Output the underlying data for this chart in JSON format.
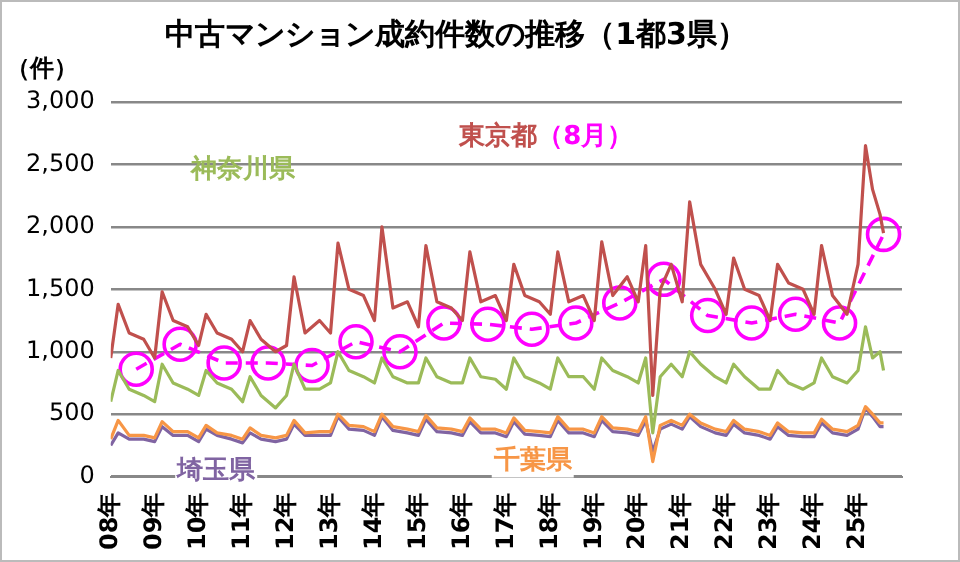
{
  "chart_data": {
    "type": "line",
    "title": "中古マンション成約件数の推移（1都3県）",
    "ylabel": "（件）",
    "xlim": [
      8,
      26
    ],
    "xticks": [
      {
        "value": 8,
        "label": "08年"
      },
      {
        "value": 9,
        "label": "09年"
      },
      {
        "value": 10,
        "label": "10年"
      },
      {
        "value": 11,
        "label": "11年"
      },
      {
        "value": 12,
        "label": "12年"
      },
      {
        "value": 13,
        "label": "13年"
      },
      {
        "value": 14,
        "label": "14年"
      },
      {
        "value": 15,
        "label": "15年"
      },
      {
        "value": 16,
        "label": "16年"
      },
      {
        "value": 17,
        "label": "17年"
      },
      {
        "value": 18,
        "label": "18年"
      },
      {
        "value": 19,
        "label": "19年"
      },
      {
        "value": 20,
        "label": "20年"
      },
      {
        "value": 21,
        "label": "21年"
      },
      {
        "value": 22,
        "label": "22年"
      },
      {
        "value": 23,
        "label": "23年"
      },
      {
        "value": 24,
        "label": "24年"
      },
      {
        "value": 25,
        "label": "25年"
      }
    ],
    "ylim": [
      0,
      3000
    ],
    "yticks": [
      0,
      500,
      {
        "value": 1000,
        "label": "1,000"
      },
      {
        "value": 1500,
        "label": "1,500"
      },
      {
        "value": 2000,
        "label": "2,000"
      },
      {
        "value": 2500,
        "label": "2,500"
      },
      {
        "value": 3000,
        "label": "3,000"
      }
    ],
    "grid": "y",
    "legend": false,
    "marker": "none",
    "line_style": "solid",
    "series": [
      {
        "name": "千葉県",
        "color": "#f79646",
        "x": [
          8,
          8.17,
          8.42,
          8.75,
          9,
          9.17,
          9.42,
          9.75,
          10,
          10.17,
          10.42,
          10.75,
          11,
          11.17,
          11.42,
          11.75,
          12,
          12.17,
          12.42,
          12.75,
          13,
          13.17,
          13.42,
          13.75,
          14,
          14.17,
          14.42,
          14.75,
          15,
          15.17,
          15.42,
          15.75,
          16,
          16.17,
          16.42,
          16.75,
          17,
          17.17,
          17.42,
          17.75,
          18,
          18.17,
          18.42,
          18.75,
          19,
          19.17,
          19.42,
          19.75,
          20,
          20.17,
          20.33,
          20.5,
          20.75,
          21,
          21.17,
          21.42,
          21.75,
          22,
          22.17,
          22.42,
          22.75,
          23,
          23.17,
          23.42,
          23.75,
          24,
          24.17,
          24.42,
          24.75,
          25,
          25.17,
          25.33,
          25.5,
          25.58
        ],
        "values": [
          300,
          450,
          330,
          330,
          310,
          440,
          360,
          360,
          310,
          410,
          350,
          330,
          300,
          390,
          330,
          310,
          330,
          450,
          350,
          360,
          360,
          500,
          410,
          400,
          360,
          500,
          400,
          380,
          360,
          490,
          390,
          380,
          360,
          470,
          380,
          380,
          350,
          470,
          370,
          360,
          350,
          480,
          380,
          380,
          350,
          480,
          390,
          380,
          360,
          480,
          120,
          410,
          450,
          410,
          500,
          430,
          380,
          360,
          450,
          380,
          360,
          330,
          430,
          360,
          350,
          350,
          460,
          380,
          360,
          410,
          560,
          500,
          430,
          430
        ]
      },
      {
        "name": "埼玉県",
        "color": "#8064a2",
        "x": [
          8,
          8.17,
          8.42,
          8.75,
          9,
          9.17,
          9.42,
          9.75,
          10,
          10.17,
          10.42,
          10.75,
          11,
          11.17,
          11.42,
          11.75,
          12,
          12.17,
          12.42,
          12.75,
          13,
          13.17,
          13.42,
          13.75,
          14,
          14.17,
          14.42,
          14.75,
          15,
          15.17,
          15.42,
          15.75,
          16,
          16.17,
          16.42,
          16.75,
          17,
          17.17,
          17.42,
          17.75,
          18,
          18.17,
          18.42,
          18.75,
          19,
          19.17,
          19.42,
          19.75,
          20,
          20.17,
          20.33,
          20.5,
          20.75,
          21,
          21.17,
          21.42,
          21.75,
          22,
          22.17,
          22.42,
          22.75,
          23,
          23.17,
          23.42,
          23.75,
          24,
          24.17,
          24.42,
          24.75,
          25,
          25.17,
          25.33,
          25.5,
          25.58
        ],
        "values": [
          250,
          350,
          300,
          300,
          280,
          400,
          330,
          330,
          280,
          380,
          330,
          300,
          270,
          350,
          300,
          280,
          300,
          420,
          330,
          330,
          330,
          480,
          380,
          370,
          330,
          480,
          370,
          350,
          330,
          460,
          360,
          350,
          330,
          440,
          350,
          350,
          320,
          440,
          340,
          330,
          320,
          450,
          350,
          350,
          320,
          450,
          360,
          350,
          330,
          450,
          200,
          380,
          420,
          380,
          480,
          400,
          350,
          330,
          420,
          350,
          330,
          300,
          400,
          330,
          320,
          320,
          430,
          350,
          330,
          380,
          550,
          480,
          400,
          400
        ]
      },
      {
        "name": "神奈川県",
        "color": "#9bbb59",
        "x": [
          8,
          8.17,
          8.42,
          8.75,
          9,
          9.17,
          9.42,
          9.75,
          10,
          10.17,
          10.42,
          10.75,
          11,
          11.17,
          11.42,
          11.75,
          12,
          12.17,
          12.42,
          12.75,
          13,
          13.17,
          13.42,
          13.75,
          14,
          14.17,
          14.42,
          14.75,
          15,
          15.17,
          15.42,
          15.75,
          16,
          16.17,
          16.42,
          16.75,
          17,
          17.17,
          17.42,
          17.75,
          18,
          18.17,
          18.42,
          18.75,
          19,
          19.17,
          19.42,
          19.75,
          20,
          20.17,
          20.33,
          20.5,
          20.75,
          21,
          21.17,
          21.42,
          21.75,
          22,
          22.17,
          22.42,
          22.75,
          23,
          23.17,
          23.42,
          23.75,
          24,
          24.17,
          24.42,
          24.75,
          25,
          25.17,
          25.33,
          25.5,
          25.58
        ],
        "values": [
          600,
          850,
          700,
          650,
          600,
          900,
          750,
          700,
          650,
          850,
          750,
          700,
          600,
          800,
          650,
          550,
          650,
          900,
          700,
          700,
          750,
          1000,
          850,
          800,
          750,
          950,
          800,
          750,
          750,
          950,
          800,
          750,
          750,
          950,
          800,
          780,
          700,
          950,
          800,
          750,
          700,
          950,
          800,
          800,
          700,
          950,
          850,
          800,
          750,
          950,
          350,
          800,
          900,
          800,
          1000,
          900,
          800,
          750,
          900,
          800,
          700,
          700,
          850,
          750,
          700,
          750,
          950,
          800,
          750,
          850,
          1200,
          950,
          1000,
          850
        ]
      },
      {
        "name": "東京都",
        "color": "#c0504d",
        "x": [
          8,
          8.17,
          8.42,
          8.75,
          9,
          9.17,
          9.42,
          9.75,
          10,
          10.17,
          10.42,
          10.75,
          11,
          11.17,
          11.42,
          11.75,
          12,
          12.17,
          12.42,
          12.75,
          13,
          13.17,
          13.42,
          13.75,
          14,
          14.17,
          14.42,
          14.75,
          15,
          15.17,
          15.42,
          15.75,
          16,
          16.17,
          16.42,
          16.75,
          17,
          17.17,
          17.42,
          17.75,
          18,
          18.17,
          18.42,
          18.75,
          19,
          19.17,
          19.42,
          19.75,
          20,
          20.17,
          20.33,
          20.5,
          20.75,
          21,
          21.17,
          21.42,
          21.75,
          22,
          22.17,
          22.42,
          22.75,
          23,
          23.17,
          23.42,
          23.75,
          24,
          24.17,
          24.42,
          24.75,
          25,
          25.17,
          25.33,
          25.5,
          25.58
        ],
        "values": [
          950,
          1380,
          1150,
          1100,
          950,
          1480,
          1250,
          1200,
          1050,
          1300,
          1150,
          1100,
          1000,
          1250,
          1100,
          1000,
          1050,
          1600,
          1150,
          1250,
          1150,
          1870,
          1500,
          1450,
          1250,
          2000,
          1350,
          1400,
          1200,
          1850,
          1400,
          1350,
          1250,
          1800,
          1400,
          1450,
          1250,
          1700,
          1450,
          1400,
          1300,
          1800,
          1400,
          1450,
          1250,
          1880,
          1450,
          1600,
          1400,
          1850,
          650,
          1500,
          1700,
          1400,
          2200,
          1700,
          1500,
          1300,
          1750,
          1500,
          1450,
          1250,
          1700,
          1550,
          1500,
          1300,
          1850,
          1450,
          1300,
          1700,
          2650,
          2300,
          2100,
          1950
        ]
      },
      {
        "name": "（8月）",
        "color": "#ff00ff",
        "marker": "circle",
        "line_style": "dashed",
        "x": [
          8.58,
          9.58,
          10.58,
          11.58,
          12.58,
          13.58,
          14.58,
          15.58,
          16.58,
          17.58,
          18.58,
          19.58,
          20.58,
          21.58,
          22.58,
          23.58,
          24.58,
          25.58
        ],
        "values": [
          860,
          1060,
          910,
          910,
          890,
          1080,
          1000,
          1230,
          1220,
          1180,
          1230,
          1390,
          1580,
          1290,
          1230,
          1300,
          1230,
          1940
        ]
      }
    ]
  }
}
